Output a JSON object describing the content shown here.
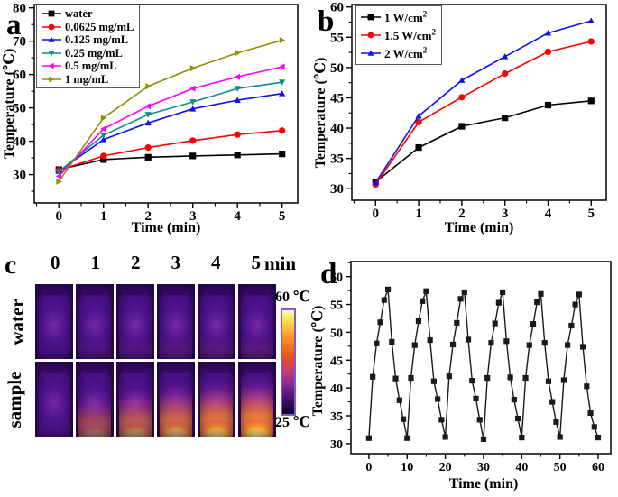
{
  "panel_labels": {
    "a": "a",
    "b": "b",
    "c": "c",
    "d": "d"
  },
  "chart_data": [
    {
      "panel": "a",
      "type": "line",
      "title": "",
      "xlabel": "Time (min)",
      "ylabel": "Temperature (℃)",
      "x": [
        0,
        1,
        2,
        3,
        4,
        5
      ],
      "xticks": [
        0,
        1,
        2,
        3,
        4,
        5
      ],
      "yticks": [
        30,
        40,
        50,
        60,
        70,
        80
      ],
      "xlim": [
        -0.55,
        5.35
      ],
      "ylim": [
        21.5,
        81
      ],
      "grid": false,
      "legend_position": "top-left",
      "series": [
        {
          "name": "water",
          "marker": "square",
          "color": "#000000",
          "values": [
            31.5,
            34.5,
            35.2,
            35.6,
            35.9,
            36.2
          ]
        },
        {
          "name": "0.0625 mg/mL",
          "marker": "circle",
          "color": "#ff0000",
          "values": [
            31.3,
            35.6,
            38.1,
            40.2,
            42.0,
            43.2
          ]
        },
        {
          "name": "0.125 mg/mL",
          "marker": "triangle-up",
          "color": "#0f0fef",
          "values": [
            31.0,
            40.5,
            45.5,
            49.7,
            52.3,
            54.3
          ]
        },
        {
          "name": "0.25 mg/mL",
          "marker": "triangle-down",
          "color": "#108c8c",
          "values": [
            30.9,
            41.8,
            48.0,
            51.8,
            55.8,
            57.7
          ]
        },
        {
          "name": "0.5 mg/mL",
          "marker": "triangle-left",
          "color": "#ff00ff",
          "values": [
            29.5,
            43.7,
            50.5,
            55.8,
            59.3,
            62.3
          ]
        },
        {
          "name": "1 mg/mL",
          "marker": "triangle-right",
          "color": "#8f8f00",
          "values": [
            27.9,
            47.0,
            56.5,
            61.9,
            66.5,
            70.3
          ]
        }
      ]
    },
    {
      "panel": "b",
      "type": "line",
      "title": "",
      "xlabel": "Time (min)",
      "ylabel": "Temperature (℃)",
      "x": [
        0,
        1,
        2,
        3,
        4,
        5
      ],
      "xticks": [
        0,
        1,
        2,
        3,
        4,
        5
      ],
      "yticks": [
        30,
        35,
        40,
        45,
        50,
        55,
        60
      ],
      "xlim": [
        -0.55,
        5.35
      ],
      "ylim": [
        28.1,
        60.4
      ],
      "grid": false,
      "legend_position": "top-left",
      "series": [
        {
          "name": "1 W/cm",
          "sup": "2",
          "marker": "square",
          "color": "#000000",
          "values": [
            31.1,
            36.8,
            40.3,
            41.7,
            43.8,
            44.5
          ]
        },
        {
          "name": "1.5 W/cm",
          "sup": "2",
          "marker": "circle",
          "color": "#ff0000",
          "values": [
            30.7,
            41.0,
            45.1,
            49.0,
            52.6,
            54.3
          ]
        },
        {
          "name": "2 W/cm",
          "sup": "2",
          "marker": "triangle-up",
          "color": "#0f0fef",
          "values": [
            31.0,
            42.0,
            47.9,
            51.8,
            55.7,
            57.7
          ]
        }
      ]
    },
    {
      "panel": "d",
      "type": "line",
      "title": "",
      "xlabel": "Time (min)",
      "ylabel": "Temperature (℃)",
      "x": [
        0,
        1,
        2,
        3,
        4,
        5,
        6,
        7,
        8,
        9,
        10,
        11,
        12,
        13,
        14,
        15,
        16,
        17,
        18,
        19,
        20,
        21,
        22,
        23,
        24,
        25,
        26,
        27,
        28,
        29,
        30,
        31,
        32,
        33,
        34,
        35,
        36,
        37,
        38,
        39,
        40,
        41,
        42,
        43,
        44,
        45,
        46,
        47,
        48,
        49,
        50,
        51,
        52,
        53,
        54,
        55,
        56,
        57,
        58,
        59,
        60
      ],
      "xticks": [
        0,
        10,
        20,
        30,
        40,
        50,
        60
      ],
      "yticks": [
        30,
        35,
        40,
        45,
        50,
        55,
        60
      ],
      "xlim": [
        -4.7,
        63.3
      ],
      "ylim": [
        28.2,
        62.7
      ],
      "grid": false,
      "legend_position": "none",
      "series": [
        {
          "name": "",
          "marker": "square",
          "color": "#1a1a1a",
          "values": [
            31.0,
            42.0,
            48.0,
            51.8,
            55.8,
            57.7,
            48.3,
            41.7,
            37.8,
            34.4,
            31.0,
            41.8,
            47.7,
            52.0,
            55.6,
            57.4,
            48.6,
            41.2,
            38.0,
            34.3,
            31.2,
            42.1,
            47.8,
            51.7,
            56.0,
            57.2,
            48.7,
            41.3,
            38.1,
            34.3,
            30.8,
            41.8,
            48.1,
            51.6,
            55.3,
            57.2,
            48.4,
            41.9,
            37.9,
            34.5,
            31.1,
            41.8,
            47.7,
            51.5,
            55.4,
            56.9,
            48.1,
            41.2,
            37.5,
            33.9,
            31.2,
            41.4,
            47.7,
            51.2,
            55.0,
            56.8,
            47.4,
            40.3,
            35.5,
            33.0,
            31.1
          ]
        }
      ]
    }
  ],
  "panel_c": {
    "time_labels": [
      "0",
      "1",
      "2",
      "3",
      "4",
      "5"
    ],
    "time_unit": "min",
    "rows": [
      {
        "label": "water",
        "glow": [
          0,
          0.05,
          0.07,
          0.09,
          0.1,
          0.11
        ]
      },
      {
        "label": "sample",
        "glow": [
          0.02,
          0.55,
          0.7,
          0.82,
          0.92,
          1
        ]
      }
    ],
    "colorbar": {
      "max": "60 ℃",
      "min": "25 ℃",
      "max_value": 60,
      "min_value": 25
    }
  }
}
